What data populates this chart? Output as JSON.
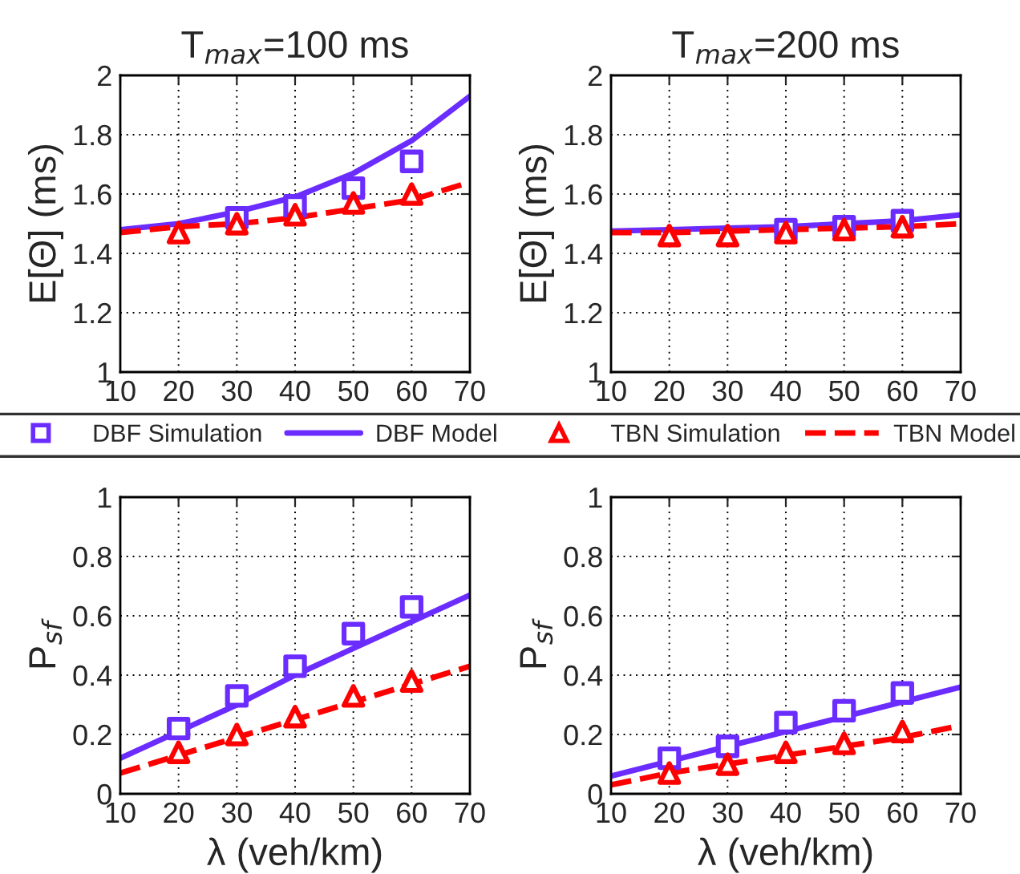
{
  "chart_data": [
    {
      "type": "line",
      "title": "T$_{max}$=100 ms",
      "ylabel": "E[Θ] (ms)",
      "x": [
        10,
        20,
        30,
        40,
        50,
        60,
        70
      ],
      "xlim": [
        10,
        70
      ],
      "xticks": [
        10,
        20,
        30,
        40,
        50,
        60,
        70
      ],
      "ylim": [
        1,
        2
      ],
      "yticks": [
        1,
        1.2,
        1.4,
        1.6,
        1.8,
        2
      ],
      "grid": true,
      "legend": "bottom",
      "series": [
        {
          "name": "DBF Simulation",
          "type": "scatter",
          "marker": "square",
          "color": "#6a2cff",
          "x": [
            30,
            40,
            50,
            60
          ],
          "values": [
            1.52,
            1.56,
            1.62,
            1.71
          ]
        },
        {
          "name": "DBF Model",
          "type": "line",
          "line_style": "solid",
          "color": "#6a2cff",
          "values": [
            1.48,
            1.5,
            1.54,
            1.59,
            1.67,
            1.78,
            1.93
          ]
        },
        {
          "name": "TBN Simulation",
          "type": "scatter",
          "marker": "triangle",
          "color": "#ff0000",
          "x": [
            20,
            30,
            40,
            50,
            60
          ],
          "values": [
            1.47,
            1.5,
            1.53,
            1.57,
            1.6
          ]
        },
        {
          "name": "TBN Model",
          "type": "line",
          "line_style": "dashed",
          "color": "#ff0000",
          "values": [
            1.47,
            1.49,
            1.5,
            1.52,
            1.55,
            1.58,
            1.64
          ]
        }
      ]
    },
    {
      "type": "line",
      "title": "T$_{max}$=200 ms",
      "ylabel": "E[Θ] (ms)",
      "x": [
        10,
        20,
        30,
        40,
        50,
        60,
        70
      ],
      "xlim": [
        10,
        70
      ],
      "xticks": [
        10,
        20,
        30,
        40,
        50,
        60,
        70
      ],
      "ylim": [
        1,
        2
      ],
      "yticks": [
        1,
        1.2,
        1.4,
        1.6,
        1.8,
        2
      ],
      "grid": true,
      "series": [
        {
          "type": "scatter",
          "marker": "square",
          "color": "#6a2cff",
          "x": [
            40,
            50,
            60
          ],
          "values": [
            1.48,
            1.49,
            1.51
          ]
        },
        {
          "type": "line",
          "line_style": "solid",
          "color": "#6a2cff",
          "values": [
            1.475,
            1.48,
            1.485,
            1.49,
            1.5,
            1.51,
            1.53
          ]
        },
        {
          "type": "scatter",
          "marker": "triangle",
          "color": "#ff0000",
          "x": [
            20,
            30,
            40,
            50,
            60
          ],
          "values": [
            1.46,
            1.46,
            1.47,
            1.48,
            1.49
          ]
        },
        {
          "type": "line",
          "line_style": "dashed",
          "color": "#ff0000",
          "values": [
            1.47,
            1.47,
            1.475,
            1.48,
            1.485,
            1.49,
            1.5
          ]
        }
      ]
    },
    {
      "type": "line",
      "xlabel": "λ (veh/km)",
      "ylabel": "P$_{sf}$",
      "x": [
        10,
        20,
        30,
        40,
        50,
        60,
        70
      ],
      "xlim": [
        10,
        70
      ],
      "xticks": [
        10,
        20,
        30,
        40,
        50,
        60,
        70
      ],
      "ylim": [
        0,
        1
      ],
      "yticks": [
        0,
        0.2,
        0.4,
        0.6,
        0.8,
        1
      ],
      "grid": true,
      "series": [
        {
          "type": "scatter",
          "marker": "square",
          "color": "#6a2cff",
          "x": [
            20,
            30,
            40,
            50,
            60
          ],
          "values": [
            0.22,
            0.33,
            0.43,
            0.54,
            0.63
          ]
        },
        {
          "type": "line",
          "line_style": "solid",
          "color": "#6a2cff",
          "values": [
            0.12,
            0.21,
            0.3,
            0.4,
            0.49,
            0.58,
            0.67
          ]
        },
        {
          "type": "scatter",
          "marker": "triangle",
          "color": "#ff0000",
          "x": [
            20,
            30,
            40,
            50,
            60
          ],
          "values": [
            0.14,
            0.2,
            0.26,
            0.33,
            0.38
          ]
        },
        {
          "type": "line",
          "line_style": "dashed",
          "color": "#ff0000",
          "values": [
            0.07,
            0.13,
            0.19,
            0.25,
            0.31,
            0.37,
            0.43
          ]
        }
      ]
    },
    {
      "type": "line",
      "xlabel": "λ (veh/km)",
      "ylabel": "P$_{sf}$",
      "x": [
        10,
        20,
        30,
        40,
        50,
        60,
        70
      ],
      "xlim": [
        10,
        70
      ],
      "xticks": [
        10,
        20,
        30,
        40,
        50,
        60,
        70
      ],
      "ylim": [
        0,
        1
      ],
      "yticks": [
        0,
        0.2,
        0.4,
        0.6,
        0.8,
        1
      ],
      "grid": true,
      "series": [
        {
          "type": "scatter",
          "marker": "square",
          "color": "#6a2cff",
          "x": [
            20,
            30,
            40,
            50,
            60
          ],
          "values": [
            0.12,
            0.16,
            0.24,
            0.28,
            0.34
          ]
        },
        {
          "type": "line",
          "line_style": "solid",
          "color": "#6a2cff",
          "values": [
            0.06,
            0.11,
            0.16,
            0.21,
            0.26,
            0.31,
            0.36
          ]
        },
        {
          "type": "scatter",
          "marker": "triangle",
          "color": "#ff0000",
          "x": [
            20,
            30,
            40,
            50,
            60
          ],
          "values": [
            0.07,
            0.1,
            0.14,
            0.17,
            0.21
          ]
        },
        {
          "type": "line",
          "line_style": "dashed",
          "color": "#ff0000",
          "values": [
            0.03,
            0.07,
            0.1,
            0.13,
            0.16,
            0.19,
            0.23
          ]
        }
      ]
    }
  ]
}
